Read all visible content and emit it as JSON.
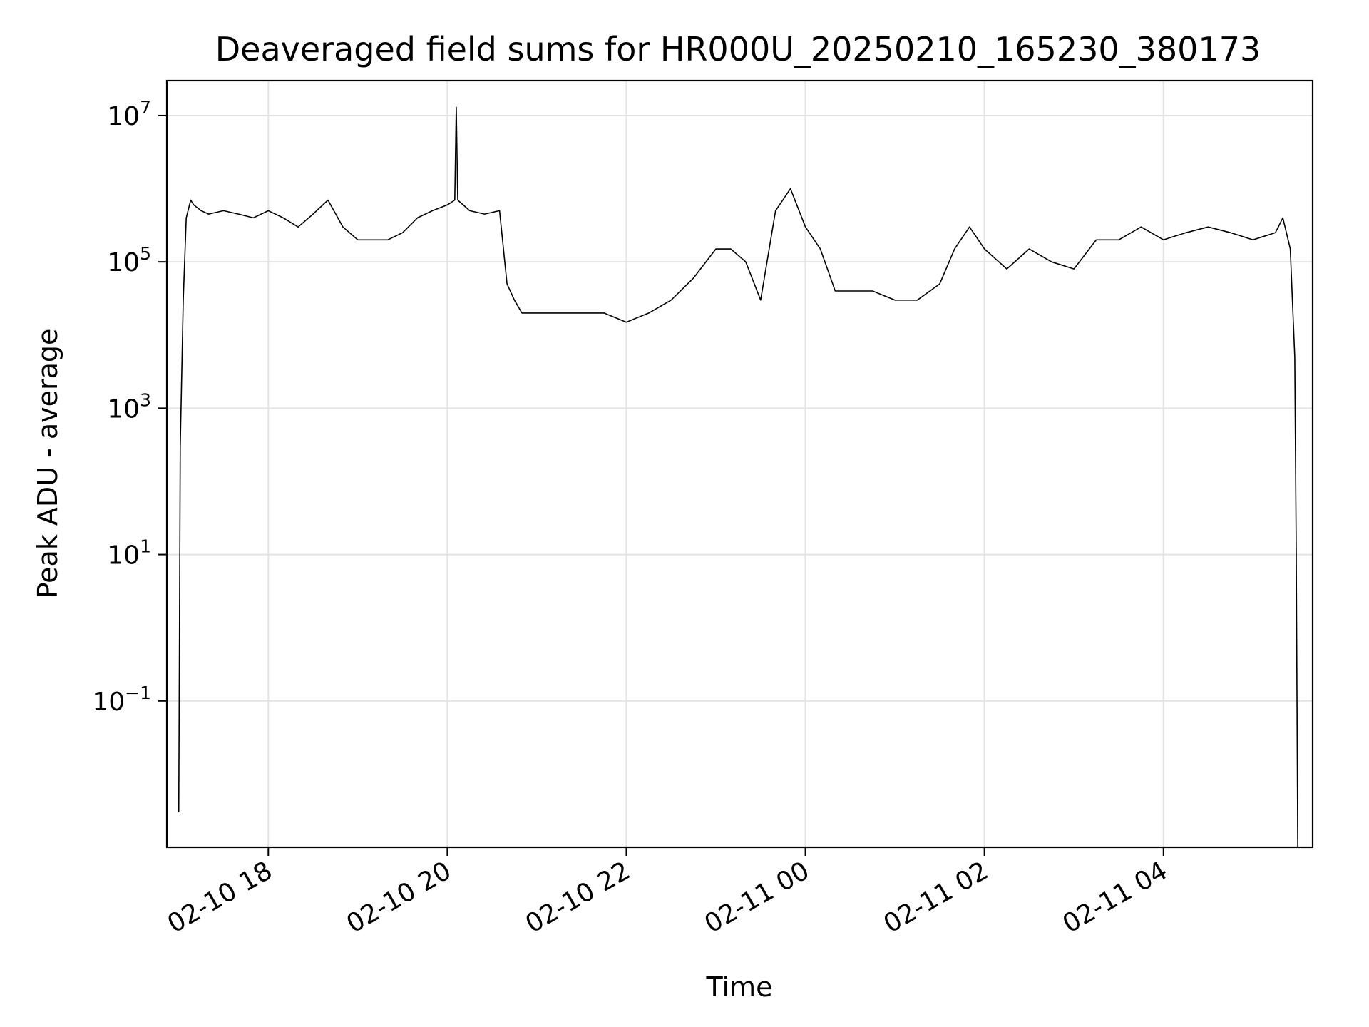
{
  "chart_data": {
    "type": "line",
    "title": "Deaveraged field sums for HR000U_20250210_165230_380173",
    "xlabel": "Time",
    "ylabel": "Peak ADU - average",
    "y_scale": "log",
    "ylim": [
      0.001,
      30000000
    ],
    "xlim": [
      "2025-02-10 16:52",
      "2025-02-11 05:40"
    ],
    "grid": true,
    "line_color": "#000000",
    "x_ticks": [
      {
        "value": "2025-02-10 18:00",
        "label": "02-10 18"
      },
      {
        "value": "2025-02-10 20:00",
        "label": "02-10 20"
      },
      {
        "value": "2025-02-10 22:00",
        "label": "02-10 22"
      },
      {
        "value": "2025-02-11 00:00",
        "label": "02-11 00"
      },
      {
        "value": "2025-02-11 02:00",
        "label": "02-11 02"
      },
      {
        "value": "2025-02-11 04:00",
        "label": "02-11 04"
      }
    ],
    "y_ticks": [
      {
        "value": 0.1,
        "base": "10",
        "exp": "−1"
      },
      {
        "value": 10,
        "base": "10",
        "exp": "1"
      },
      {
        "value": 1000,
        "base": "10",
        "exp": "3"
      },
      {
        "value": 100000,
        "base": "10",
        "exp": "5"
      },
      {
        "value": 10000000,
        "base": "10",
        "exp": "7"
      }
    ],
    "series": [
      {
        "x": [
          "2025-02-10 17:00",
          "2025-02-10 17:01",
          "2025-02-10 17:03",
          "2025-02-10 17:05",
          "2025-02-10 17:08",
          "2025-02-10 17:10",
          "2025-02-10 17:15",
          "2025-02-10 17:20",
          "2025-02-10 17:30",
          "2025-02-10 17:40",
          "2025-02-10 17:50",
          "2025-02-10 18:00",
          "2025-02-10 18:10",
          "2025-02-10 18:20",
          "2025-02-10 18:30",
          "2025-02-10 18:40",
          "2025-02-10 18:50",
          "2025-02-10 19:00",
          "2025-02-10 19:10",
          "2025-02-10 19:20",
          "2025-02-10 19:30",
          "2025-02-10 19:40",
          "2025-02-10 19:50",
          "2025-02-10 20:00",
          "2025-02-10 20:05",
          "2025-02-10 20:06",
          "2025-02-10 20:07",
          "2025-02-10 20:15",
          "2025-02-10 20:25",
          "2025-02-10 20:35",
          "2025-02-10 20:40",
          "2025-02-10 20:45",
          "2025-02-10 20:50",
          "2025-02-10 21:00",
          "2025-02-10 21:15",
          "2025-02-10 21:30",
          "2025-02-10 21:45",
          "2025-02-10 22:00",
          "2025-02-10 22:15",
          "2025-02-10 22:30",
          "2025-02-10 22:45",
          "2025-02-10 23:00",
          "2025-02-10 23:10",
          "2025-02-10 23:20",
          "2025-02-10 23:30",
          "2025-02-10 23:40",
          "2025-02-10 23:50",
          "2025-02-11 00:00",
          "2025-02-11 00:10",
          "2025-02-11 00:20",
          "2025-02-11 00:30",
          "2025-02-11 00:45",
          "2025-02-11 01:00",
          "2025-02-11 01:15",
          "2025-02-11 01:30",
          "2025-02-11 01:40",
          "2025-02-11 01:50",
          "2025-02-11 02:00",
          "2025-02-11 02:15",
          "2025-02-11 02:30",
          "2025-02-11 02:45",
          "2025-02-11 03:00",
          "2025-02-11 03:15",
          "2025-02-11 03:30",
          "2025-02-11 03:45",
          "2025-02-11 04:00",
          "2025-02-11 04:15",
          "2025-02-11 04:30",
          "2025-02-11 04:45",
          "2025-02-11 05:00",
          "2025-02-11 05:15",
          "2025-02-11 05:20",
          "2025-02-11 05:25",
          "2025-02-11 05:28",
          "2025-02-11 05:29",
          "2025-02-11 05:30"
        ],
        "y": [
          0.003,
          300,
          30000,
          400000,
          700000,
          600000,
          500000,
          450000,
          500000,
          450000,
          400000,
          500000,
          400000,
          300000,
          450000,
          700000,
          300000,
          200000,
          200000,
          200000,
          250000,
          400000,
          500000,
          600000,
          700000,
          13000000,
          700000,
          500000,
          450000,
          500000,
          50000,
          30000,
          20000,
          20000,
          20000,
          20000,
          20000,
          15000,
          20000,
          30000,
          60000,
          150000,
          150000,
          100000,
          30000,
          500000,
          1000000,
          300000,
          150000,
          40000,
          40000,
          40000,
          30000,
          30000,
          50000,
          150000,
          300000,
          150000,
          80000,
          150000,
          100000,
          80000,
          200000,
          200000,
          300000,
          200000,
          250000,
          300000,
          250000,
          200000,
          250000,
          400000,
          150000,
          5000,
          10,
          0.001
        ]
      }
    ]
  }
}
